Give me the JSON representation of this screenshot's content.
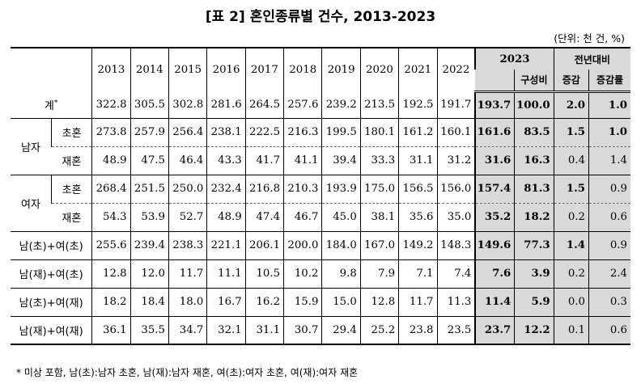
{
  "title": "[표 2] 혼인종류별 건수, 2013-2023",
  "unit": "(단위: 천 건, %)",
  "header": {
    "years": [
      "2013",
      "2014",
      "2015",
      "2016",
      "2017",
      "2018",
      "2019",
      "2020",
      "2021",
      "2022"
    ],
    "y2023": "2023",
    "share": "구성비",
    "yoy": "전년대비",
    "change": "증감",
    "rate": "증감률"
  },
  "rows": [
    {
      "group": "계",
      "sub": "",
      "star": "*",
      "values": [
        "322.8",
        "305.5",
        "302.8",
        "281.6",
        "264.5",
        "257.6",
        "239.2",
        "213.5",
        "192.5",
        "191.7"
      ],
      "v2023": "193.7",
      "share": "100.0",
      "change": "2.0",
      "rate": "1.0"
    },
    {
      "group": "남자",
      "sub": "초혼",
      "values": [
        "273.8",
        "257.9",
        "256.4",
        "238.1",
        "222.5",
        "216.3",
        "199.5",
        "180.1",
        "161.2",
        "160.1"
      ],
      "v2023": "161.6",
      "share": "83.5",
      "change": "1.5",
      "rate": "1.0"
    },
    {
      "group": "",
      "sub": "재혼",
      "values": [
        "48.9",
        "47.5",
        "46.4",
        "43.3",
        "41.7",
        "41.1",
        "39.4",
        "33.3",
        "31.1",
        "31.2"
      ],
      "v2023": "31.6",
      "share": "16.3",
      "change": "0.4",
      "rate": "1.4"
    },
    {
      "group": "여자",
      "sub": "초혼",
      "values": [
        "268.4",
        "251.5",
        "250.0",
        "232.4",
        "216.8",
        "210.3",
        "193.9",
        "175.0",
        "156.5",
        "156.0"
      ],
      "v2023": "157.4",
      "share": "81.3",
      "change": "1.5",
      "rate": "0.9"
    },
    {
      "group": "",
      "sub": "재혼",
      "values": [
        "54.3",
        "53.9",
        "52.7",
        "48.9",
        "47.4",
        "46.7",
        "45.0",
        "38.1",
        "35.6",
        "35.0"
      ],
      "v2023": "35.2",
      "share": "18.2",
      "change": "0.2",
      "rate": "0.6"
    },
    {
      "group": "남(초)+여(초)",
      "sub": "",
      "values": [
        "255.6",
        "239.4",
        "238.3",
        "221.1",
        "206.1",
        "200.0",
        "184.0",
        "167.0",
        "149.2",
        "148.3"
      ],
      "v2023": "149.6",
      "share": "77.3",
      "change": "1.4",
      "rate": "0.9"
    },
    {
      "group": "남(재)+여(초)",
      "sub": "",
      "values": [
        "12.8",
        "12.0",
        "11.7",
        "11.1",
        "10.5",
        "10.2",
        "9.8",
        "7.9",
        "7.1",
        "7.4"
      ],
      "v2023": "7.6",
      "share": "3.9",
      "change": "0.2",
      "rate": "2.4"
    },
    {
      "group": "남(초)+여(재)",
      "sub": "",
      "values": [
        "18.2",
        "18.4",
        "18.0",
        "16.7",
        "16.2",
        "15.9",
        "15.0",
        "12.8",
        "11.7",
        "11.3"
      ],
      "v2023": "11.4",
      "share": "5.9",
      "change": "0.0",
      "rate": "0.3"
    },
    {
      "group": "남(재)+여(재)",
      "sub": "",
      "values": [
        "36.1",
        "35.5",
        "34.7",
        "32.1",
        "31.1",
        "30.7",
        "29.4",
        "25.2",
        "23.8",
        "23.5"
      ],
      "v2023": "23.7",
      "share": "12.2",
      "change": "0.1",
      "rate": "0.6"
    }
  ],
  "footnote": "* 미상 포함, 남(초):남자 초혼, 남(재):남자 재혼, 여(초):여자 초혼, 여(재):여자 재혼"
}
